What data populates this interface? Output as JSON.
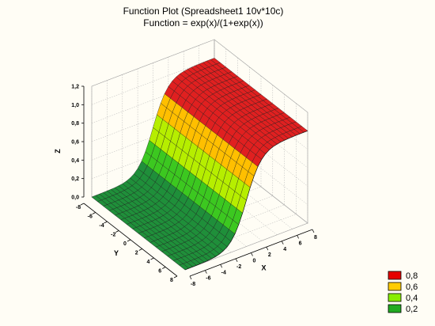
{
  "chart_data": {
    "type": "surface",
    "title": "Function Plot (Spreadsheet1 10v*10c)",
    "subtitle": "Function = exp(x)/(1+exp(x))",
    "function": "exp(x)/(1+exp(x))",
    "x_axis": {
      "label": "X",
      "ticks": [
        "-8",
        "-6",
        "-4",
        "-2",
        "0",
        "2",
        "4",
        "6",
        "8"
      ],
      "range": [
        -8,
        8
      ]
    },
    "y_axis": {
      "label": "Y",
      "ticks": [
        "-8",
        "-6",
        "-4",
        "-2",
        "0",
        "2",
        "4",
        "6",
        "8"
      ],
      "range": [
        -8,
        8
      ]
    },
    "z_axis": {
      "label": "Z",
      "ticks": [
        "0.0",
        "0.2",
        "0.4",
        "0.6",
        "0.8",
        "1.0",
        "1.2"
      ],
      "tick_labels": [
        "0,0",
        "0,2",
        "0,4",
        "0,6",
        "0,8",
        "1,0",
        "1,2"
      ],
      "range": [
        0,
        1.2
      ]
    },
    "surface_samples": {
      "x": [
        -8,
        -6,
        -4,
        -2,
        -1,
        0,
        1,
        2,
        4,
        6,
        8
      ],
      "z": [
        0.0003,
        0.0025,
        0.018,
        0.119,
        0.269,
        0.5,
        0.731,
        0.881,
        0.982,
        0.9975,
        0.9997
      ]
    },
    "legend": {
      "placement": "bottom-right",
      "entries": [
        {
          "label": "0,8",
          "color": "#e60000"
        },
        {
          "label": "0,6",
          "color": "#ffcc00"
        },
        {
          "label": "0,4",
          "color": "#88ee00"
        },
        {
          "label": "0,2",
          "color": "#22aa22"
        }
      ]
    },
    "color_scale": [
      {
        "from": 0.0,
        "to": 0.2,
        "color": "#1f8f3a"
      },
      {
        "from": 0.2,
        "to": 0.4,
        "color": "#3cc820"
      },
      {
        "from": 0.4,
        "to": 0.6,
        "color": "#b6ee00"
      },
      {
        "from": 0.6,
        "to": 0.8,
        "color": "#ffbf00"
      },
      {
        "from": 0.8,
        "to": 1.0,
        "color": "#e02020"
      },
      {
        "from": 1.0,
        "to": 1.2,
        "color": "#a80000"
      }
    ],
    "grid": true,
    "background_color": "#fffdf5"
  }
}
